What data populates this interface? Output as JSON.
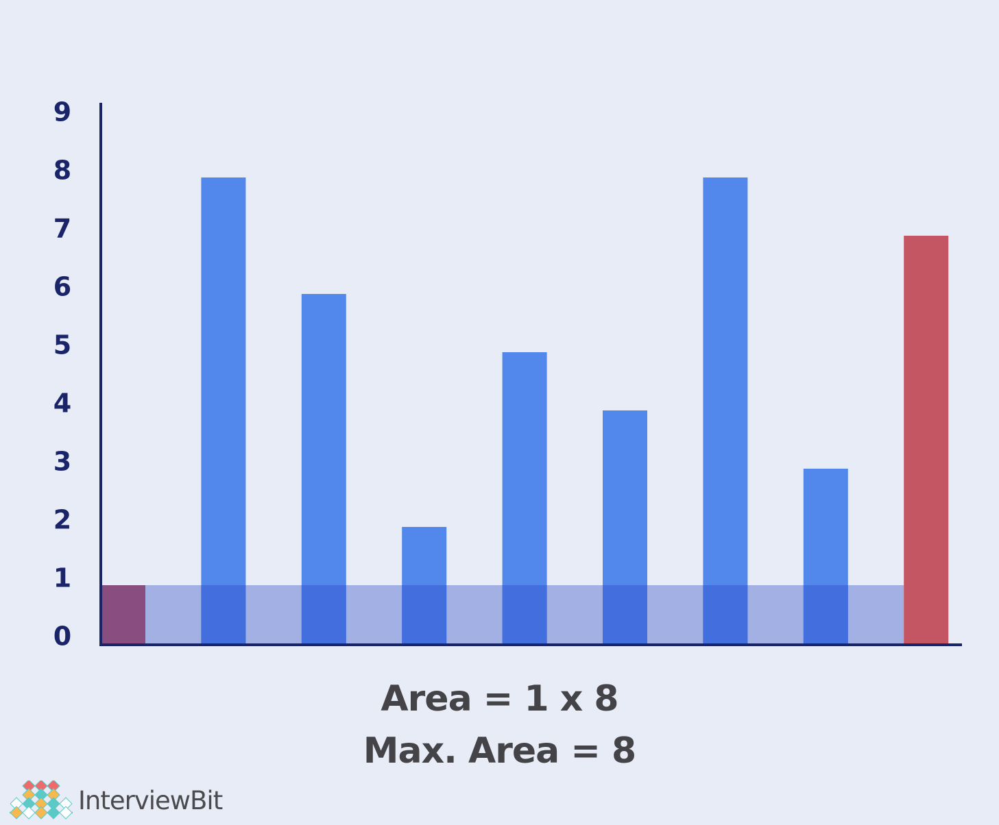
{
  "chart_data": {
    "type": "bar",
    "categories": [
      "",
      "",
      "",
      "",
      "",
      "",
      "",
      "",
      ""
    ],
    "values": [
      1,
      8,
      6,
      2,
      5,
      4,
      8,
      3,
      7
    ],
    "highlighted_indices": [
      0,
      8
    ],
    "water_level": 1,
    "ylim": [
      0,
      9
    ],
    "yticks": [
      "0",
      "1",
      "2",
      "3",
      "4",
      "5",
      "6",
      "7",
      "8",
      "9"
    ],
    "title": "",
    "xlabel": "",
    "ylabel": "",
    "grid": false,
    "colors": {
      "bar": "#5288ec",
      "bar_highlight": "#c45562",
      "bar_left_highlight": "#8a4d7f",
      "water": "#a3b0e4",
      "water_over_bar": "#436ede",
      "axis": "#1a2569",
      "tick_label": "#1a2569"
    }
  },
  "captions": {
    "line1": "Area = 1 x 8",
    "line2": "Max. Area = 8"
  },
  "logo": {
    "text": "InterviewBit",
    "icon": "interviewbit-diamond-logo-icon",
    "colors": [
      "#ef6b6b",
      "#f7b84d",
      "#5cc9c6",
      "#ffffff"
    ]
  }
}
